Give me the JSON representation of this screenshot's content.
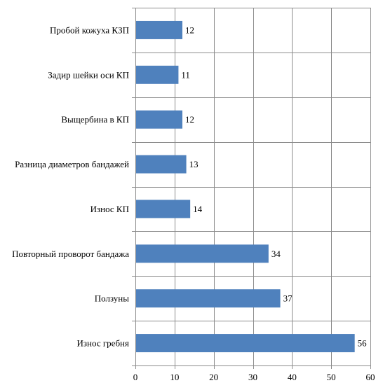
{
  "chart_data": {
    "type": "bar",
    "orientation": "horizontal",
    "categories": [
      "Пробой кожуха КЗП",
      "Задир шейки оси КП",
      "Выщербина в КП",
      "Разница диаметров бандажей",
      "Износ КП",
      "Повторный проворот бандажа",
      "Ползуны",
      "Износ гребня"
    ],
    "values": [
      12,
      11,
      12,
      13,
      14,
      34,
      37,
      56
    ],
    "xlim": [
      0,
      60
    ],
    "xticks": [
      0,
      10,
      20,
      30,
      40,
      50,
      60
    ],
    "grid": true,
    "bar_color": "#4f81bd"
  }
}
